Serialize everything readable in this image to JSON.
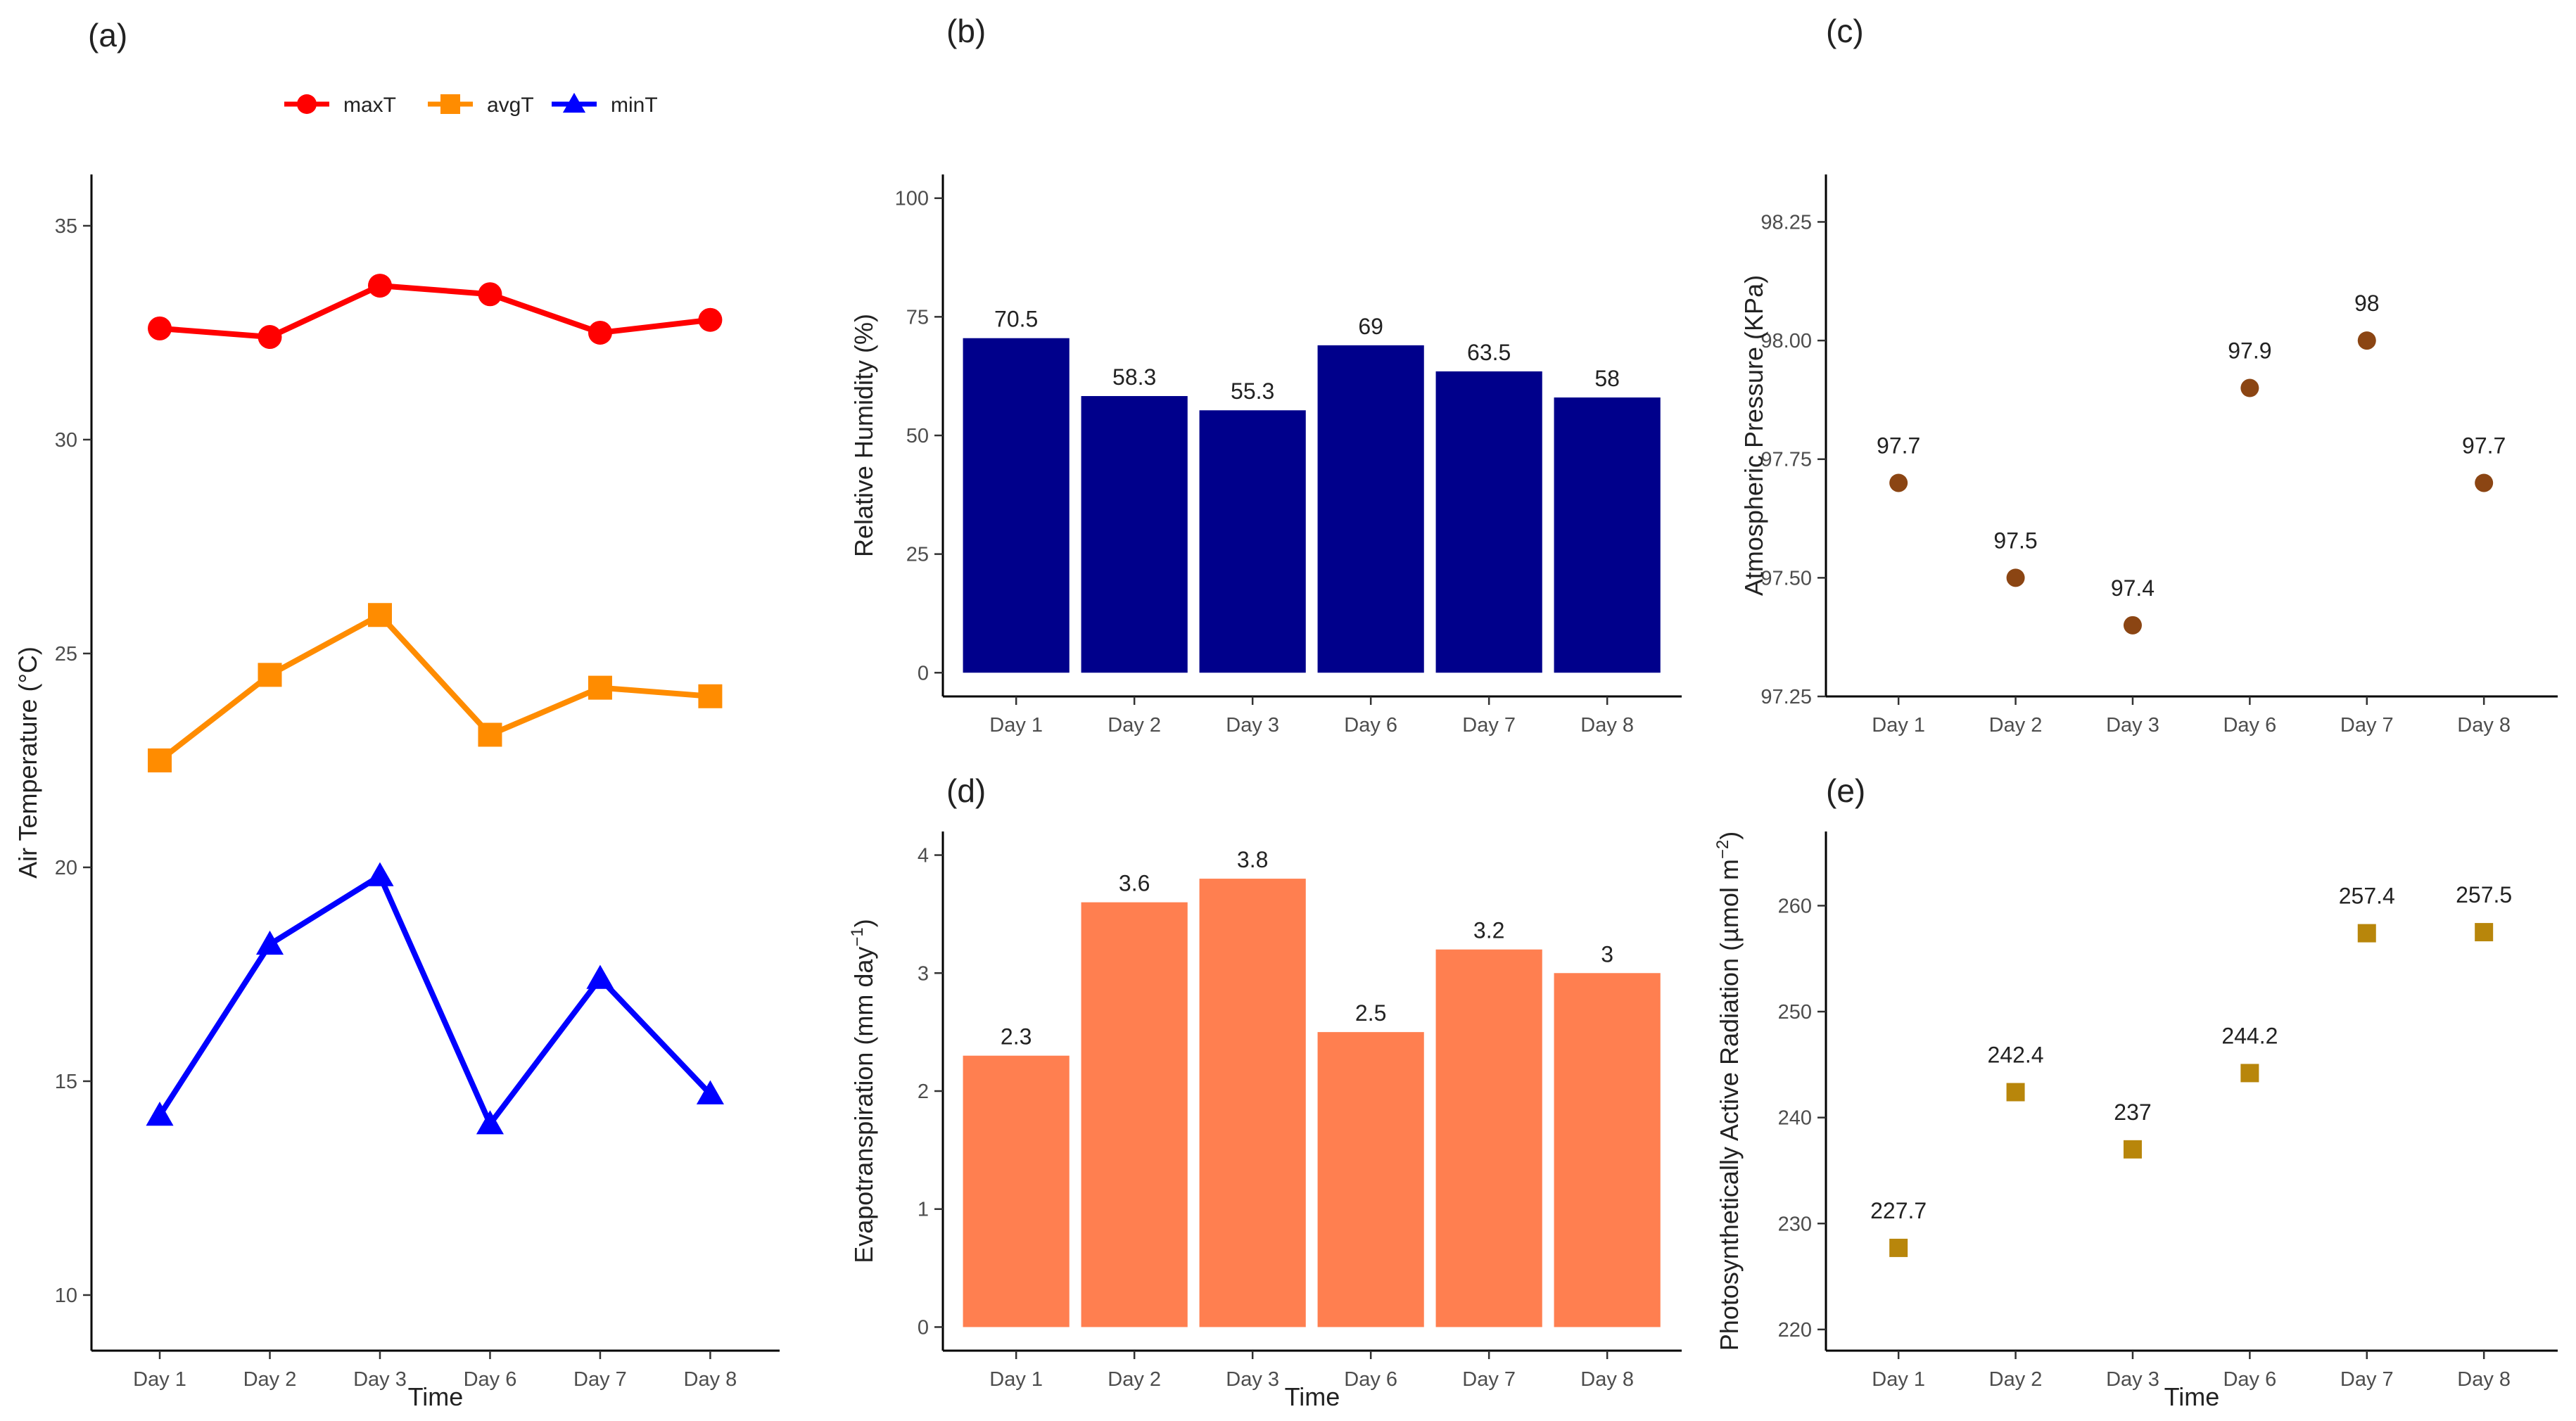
{
  "chart_data": [
    {
      "id": "a",
      "panel_label": "(a)",
      "type": "line",
      "categories": [
        "Day 1",
        "Day 2",
        "Day 3",
        "Day 6",
        "Day 7",
        "Day 8"
      ],
      "series": [
        {
          "name": "maxT",
          "values": [
            32.6,
            32.4,
            33.6,
            33.4,
            32.5,
            32.8
          ],
          "color": "#ff0000",
          "marker": "circle"
        },
        {
          "name": "avgT",
          "values": [
            22.5,
            24.5,
            25.9,
            23.1,
            24.2,
            24.0
          ],
          "color": "#ff8c00",
          "marker": "square"
        },
        {
          "name": "minT",
          "values": [
            14.2,
            18.2,
            19.8,
            14.0,
            17.4,
            14.7
          ],
          "color": "#0000ff",
          "marker": "triangle"
        }
      ],
      "xlabel": "Time",
      "ylabel": "Air Temperature (°C)",
      "ylim": [
        8.7,
        36.2
      ],
      "yticks": [
        "10",
        "15",
        "20",
        "25",
        "30",
        "35"
      ],
      "legend": "top"
    },
    {
      "id": "b",
      "panel_label": "(b)",
      "type": "bar",
      "categories": [
        "Day 1",
        "Day 2",
        "Day 3",
        "Day 6",
        "Day 7",
        "Day 8"
      ],
      "values": [
        70.5,
        58.3,
        55.3,
        69,
        63.5,
        58
      ],
      "data_labels": [
        "70.5",
        "58.3",
        "55.3",
        "69",
        "63.5",
        "58"
      ],
      "color": "#00008b",
      "xlabel": "",
      "ylabel": "Relative Humidity (%)",
      "ylim": [
        -5,
        105
      ],
      "yticks": [
        "0",
        "25",
        "50",
        "75",
        "100"
      ]
    },
    {
      "id": "c",
      "panel_label": "(c)",
      "type": "scatter",
      "categories": [
        "Day 1",
        "Day 2",
        "Day 3",
        "Day 6",
        "Day 7",
        "Day 8"
      ],
      "values": [
        97.7,
        97.5,
        97.4,
        97.9,
        98.0,
        97.7
      ],
      "data_labels": [
        "97.7",
        "97.5",
        "97.4",
        "97.9",
        "98",
        "97.7"
      ],
      "color": "#8b4513",
      "marker": "circle",
      "xlabel": "",
      "ylabel": "Atmospheric Pressure (KPa)",
      "ylim": [
        97.25,
        98.35
      ],
      "yticks": [
        "97.25",
        "97.50",
        "97.75",
        "98.00",
        "98.25"
      ]
    },
    {
      "id": "d",
      "panel_label": "(d)",
      "type": "bar",
      "categories": [
        "Day 1",
        "Day 2",
        "Day 3",
        "Day 6",
        "Day 7",
        "Day 8"
      ],
      "values": [
        2.3,
        3.6,
        3.8,
        2.5,
        3.2,
        3.0
      ],
      "data_labels": [
        "2.3",
        "3.6",
        "3.8",
        "2.5",
        "3.2",
        "3"
      ],
      "color": "#ff7f50",
      "xlabel": "Time",
      "ylabel": "Evapotranspiration  (mm day",
      "ylabel_sup": "−1",
      "ylabel_end": ")",
      "ylim": [
        -0.2,
        4.2
      ],
      "yticks": [
        "0",
        "1",
        "2",
        "3",
        "4"
      ]
    },
    {
      "id": "e",
      "panel_label": "(e)",
      "type": "scatter",
      "categories": [
        "Day 1",
        "Day 2",
        "Day 3",
        "Day 6",
        "Day 7",
        "Day 8"
      ],
      "values": [
        227.7,
        242.4,
        237,
        244.2,
        257.4,
        257.5
      ],
      "data_labels": [
        "227.7",
        "242.4",
        "237",
        "244.2",
        "257.4",
        "257.5"
      ],
      "color": "#b8860b",
      "marker": "square",
      "xlabel": "Time",
      "ylabel": "Photosynthetically Active Radiation  (µmol m",
      "ylabel_sup": "−2",
      "ylabel_end": ")",
      "ylim": [
        218,
        267
      ],
      "yticks": [
        "220",
        "230",
        "240",
        "250",
        "260"
      ]
    }
  ]
}
